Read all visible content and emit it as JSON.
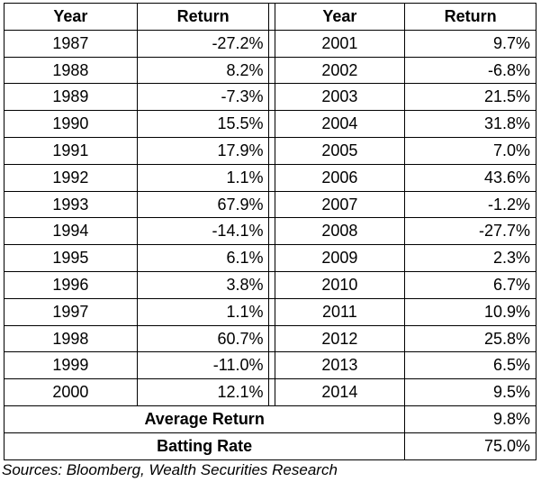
{
  "header": {
    "year_left": "Year",
    "return_left": "Return",
    "year_right": "Year",
    "return_right": "Return"
  },
  "rows": [
    {
      "year_left": "1987",
      "return_left": "-27.2%",
      "year_right": "2001",
      "return_right": "9.7%"
    },
    {
      "year_left": "1988",
      "return_left": "8.2%",
      "year_right": "2002",
      "return_right": "-6.8%"
    },
    {
      "year_left": "1989",
      "return_left": "-7.3%",
      "year_right": "2003",
      "return_right": "21.5%"
    },
    {
      "year_left": "1990",
      "return_left": "15.5%",
      "year_right": "2004",
      "return_right": "31.8%"
    },
    {
      "year_left": "1991",
      "return_left": "17.9%",
      "year_right": "2005",
      "return_right": "7.0%"
    },
    {
      "year_left": "1992",
      "return_left": "1.1%",
      "year_right": "2006",
      "return_right": "43.6%"
    },
    {
      "year_left": "1993",
      "return_left": "67.9%",
      "year_right": "2007",
      "return_right": "-1.2%"
    },
    {
      "year_left": "1994",
      "return_left": "-14.1%",
      "year_right": "2008",
      "return_right": "-27.7%"
    },
    {
      "year_left": "1995",
      "return_left": "6.1%",
      "year_right": "2009",
      "return_right": "2.3%"
    },
    {
      "year_left": "1996",
      "return_left": "3.8%",
      "year_right": "2010",
      "return_right": "6.7%"
    },
    {
      "year_left": "1997",
      "return_left": "1.1%",
      "year_right": "2011",
      "return_right": "10.9%"
    },
    {
      "year_left": "1998",
      "return_left": "60.7%",
      "year_right": "2012",
      "return_right": "25.8%"
    },
    {
      "year_left": "1999",
      "return_left": "-11.0%",
      "year_right": "2013",
      "return_right": "6.5%"
    },
    {
      "year_left": "2000",
      "return_left": "12.1%",
      "year_right": "2014",
      "return_right": "9.5%"
    }
  ],
  "summary": {
    "average_label": "Average Return",
    "average_value": "9.8%",
    "batting_label": "Batting Rate",
    "batting_value": "75.0%"
  },
  "source": "Sources: Bloomberg, Wealth Securities Research"
}
